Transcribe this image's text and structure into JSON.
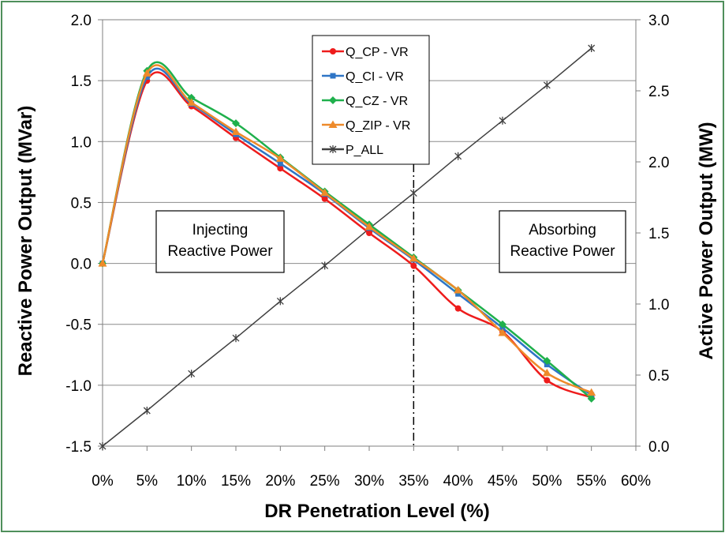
{
  "chart_data": {
    "type": "line",
    "xlabel": "DR Penetration Level (%)",
    "ylabel": "Reactive Power Output (MVar)",
    "y2label": "Active Power Output (MW)",
    "x_ticks": [
      "0%",
      "5%",
      "10%",
      "15%",
      "20%",
      "25%",
      "30%",
      "35%",
      "40%",
      "45%",
      "50%",
      "55%",
      "60%"
    ],
    "y_ticks": [
      "2.0",
      "1.5",
      "1.0",
      "0.5",
      "0.0",
      "-0.5",
      "-1.0",
      "-1.5"
    ],
    "y2_ticks": [
      "3.0",
      "2.5",
      "2.0",
      "1.5",
      "1.0",
      "0.5",
      "0.0"
    ],
    "xlim": [
      0,
      60
    ],
    "ylim": [
      -1.5,
      2.0
    ],
    "y2lim": [
      0,
      3.0
    ],
    "grid": "horizontal",
    "legend_position": "top-center",
    "x": [
      0,
      5,
      10,
      15,
      20,
      25,
      30,
      35,
      40,
      45,
      50,
      55
    ],
    "series": [
      {
        "name": "Q_CP - VR",
        "axis": "left",
        "color": "#ee1c1c",
        "marker": "circle",
        "values": [
          0.0,
          1.5,
          1.29,
          1.03,
          0.78,
          0.53,
          0.25,
          -0.02,
          -0.37,
          -0.56,
          -0.96,
          -1.1
        ]
      },
      {
        "name": "Q_CI - VR",
        "axis": "left",
        "color": "#2e75c6",
        "marker": "square",
        "values": [
          0.0,
          1.53,
          1.31,
          1.06,
          0.82,
          0.57,
          0.29,
          0.03,
          -0.25,
          -0.53,
          -0.83,
          -1.08
        ]
      },
      {
        "name": "Q_CZ - VR",
        "axis": "left",
        "color": "#1fb04c",
        "marker": "diamond",
        "values": [
          0.0,
          1.58,
          1.36,
          1.15,
          0.87,
          0.59,
          0.32,
          0.05,
          -0.22,
          -0.5,
          -0.8,
          -1.11
        ]
      },
      {
        "name": "Q_ZIP - VR",
        "axis": "left",
        "color": "#ee8a2a",
        "marker": "triangle",
        "values": [
          0.0,
          1.56,
          1.32,
          1.08,
          0.86,
          0.58,
          0.3,
          0.04,
          -0.22,
          -0.57,
          -0.9,
          -1.06
        ]
      },
      {
        "name": "P_ALL",
        "axis": "right",
        "color": "#404040",
        "marker": "star",
        "values": [
          0.0,
          0.25,
          0.51,
          0.76,
          1.02,
          1.27,
          1.53,
          1.78,
          2.04,
          2.29,
          2.54,
          2.8
        ]
      }
    ],
    "annotations": [
      {
        "text": [
          "Injecting",
          "Reactive Power"
        ]
      },
      {
        "text": [
          "Absorbing",
          "Reactive Power"
        ]
      }
    ],
    "vline_x": 35
  }
}
